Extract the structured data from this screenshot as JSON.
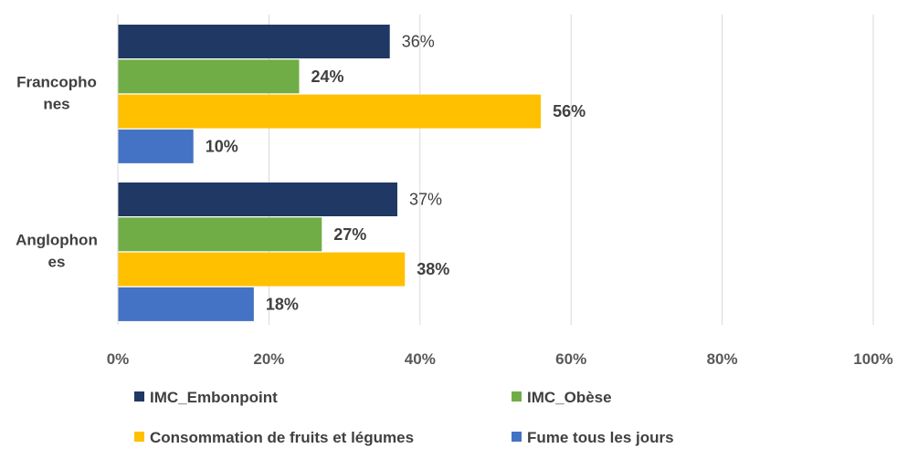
{
  "chart_data": {
    "type": "bar",
    "orientation": "horizontal",
    "categories": [
      "Francophones",
      "Anglophones"
    ],
    "category_label_lines": [
      [
        "Francopho",
        "nes"
      ],
      [
        "Anglophon",
        "es"
      ]
    ],
    "series": [
      {
        "name": "IMC_Embonpoint",
        "color": "#203864",
        "values": [
          36,
          37
        ],
        "labels": [
          "36%",
          "37%"
        ],
        "label_bold": false
      },
      {
        "name": "IMC_Obèse",
        "color": "#70ad47",
        "values": [
          24,
          27
        ],
        "labels": [
          "24%",
          "27%"
        ],
        "label_bold": true
      },
      {
        "name": "Consommation de fruits et légumes",
        "color": "#ffc000",
        "values": [
          56,
          38
        ],
        "labels": [
          "56%",
          "38%"
        ],
        "label_bold": true
      },
      {
        "name": "Fume tous les jours",
        "color": "#4472c4",
        "values": [
          10,
          18
        ],
        "labels": [
          "10%",
          "18%"
        ],
        "label_bold": true
      }
    ],
    "xlim": [
      0,
      100
    ],
    "x_ticks": [
      0,
      20,
      40,
      60,
      80,
      100
    ],
    "x_tick_labels": [
      "0%",
      "20%",
      "40%",
      "60%",
      "80%",
      "100%"
    ],
    "grid": true,
    "legend_position": "bottom",
    "title": "",
    "xlabel": "",
    "ylabel": ""
  }
}
